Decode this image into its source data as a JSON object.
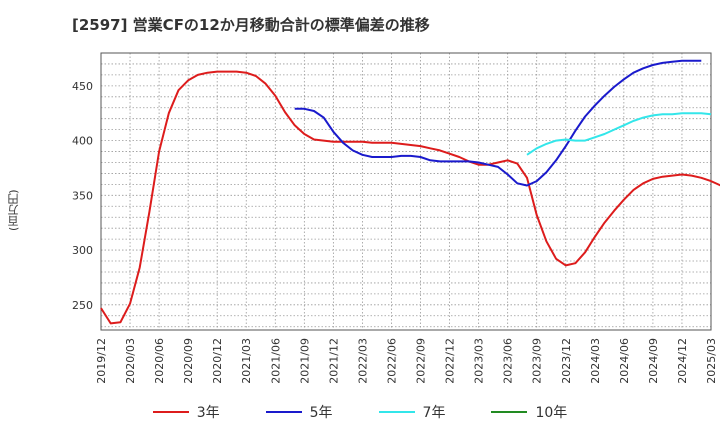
{
  "title": "[2597]  営業CFの12か月移動合計の標準偏差の推移",
  "chart_data": {
    "type": "line",
    "ylabel": "(百万円)",
    "xlabel": "",
    "ylim": [
      227,
      480
    ],
    "yticks": [
      250,
      300,
      350,
      400,
      450
    ],
    "xticks": [
      "2019/12",
      "2020/03",
      "2020/06",
      "2020/09",
      "2020/12",
      "2021/03",
      "2021/06",
      "2021/09",
      "2021/12",
      "2022/03",
      "2022/06",
      "2022/09",
      "2022/12",
      "2023/03",
      "2023/06",
      "2023/09",
      "2023/12",
      "2024/03",
      "2024/06",
      "2024/09",
      "2024/12",
      "2025/03"
    ],
    "grid": true,
    "legend_position": "bottom",
    "series": [
      {
        "name": "3年",
        "color": "#dd1c1c",
        "start": "2019/12",
        "values": [
          247,
          233,
          234,
          251,
          284,
          335,
          390,
          425,
          446,
          455,
          460,
          462,
          463,
          463,
          463,
          462,
          459,
          452,
          441,
          426,
          414,
          406,
          401,
          400,
          399,
          399,
          399,
          399,
          398,
          398,
          398,
          397,
          396,
          395,
          393,
          391,
          388,
          385,
          381,
          378,
          378,
          380,
          382,
          379,
          366,
          332,
          308,
          292,
          286,
          288,
          298,
          312,
          325,
          336,
          346,
          355,
          361,
          365,
          367,
          368,
          369,
          368,
          366,
          363,
          359
        ]
      },
      {
        "name": "5年",
        "color": "#1a1acc",
        "start": "2021/08",
        "values": [
          429,
          429,
          427,
          421,
          408,
          398,
          391,
          387,
          385,
          385,
          385,
          386,
          386,
          385,
          382,
          381,
          381,
          381,
          381,
          380,
          378,
          376,
          369,
          361,
          359,
          363,
          371,
          382,
          395,
          409,
          422,
          432,
          441,
          449,
          456,
          462,
          466,
          469,
          471,
          472,
          473,
          473,
          473
        ]
      },
      {
        "name": "7年",
        "color": "#33e6ea",
        "start": "2023/08",
        "values": [
          387,
          393,
          397,
          400,
          401,
          400,
          400,
          403,
          406,
          410,
          414,
          418,
          421,
          423,
          424,
          424,
          425,
          425,
          425,
          424
        ]
      },
      {
        "name": "10年",
        "color": "#228b22",
        "start": "2024/12",
        "values": []
      }
    ]
  }
}
